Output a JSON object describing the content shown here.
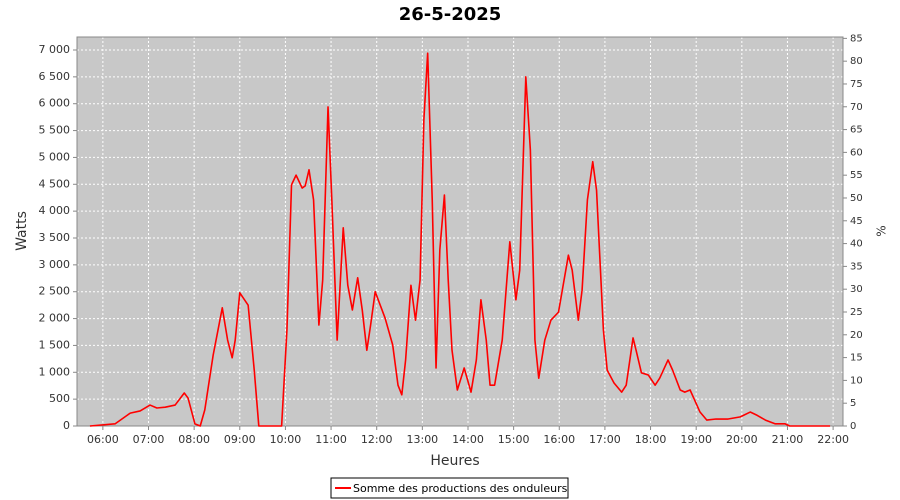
{
  "chart_data": {
    "type": "line",
    "title": "26-5-2025",
    "xlabel": "Heures",
    "ylabel": "Watts",
    "y2label": "%",
    "x": [
      "05:43",
      "06:16",
      "06:29",
      "06:36",
      "06:49",
      "07:02",
      "07:11",
      "07:22",
      "07:35",
      "07:47",
      "07:52",
      "08:01",
      "08:08",
      "08:14",
      "08:25",
      "08:37",
      "08:44",
      "08:50",
      "08:54",
      "09:00",
      "09:11",
      "09:19",
      "09:25",
      "09:55",
      "10:02",
      "10:08",
      "10:14",
      "10:22",
      "10:26",
      "10:31",
      "10:37",
      "10:44",
      "10:49",
      "10:56",
      "11:01",
      "11:08",
      "11:16",
      "11:22",
      "11:28",
      "11:35",
      "11:41",
      "11:47",
      "11:52",
      "11:58",
      "12:11",
      "12:21",
      "12:28",
      "12:33",
      "12:38",
      "12:45",
      "12:51",
      "12:57",
      "13:02",
      "13:07",
      "13:13",
      "13:18",
      "13:23",
      "13:29",
      "13:34",
      "13:39",
      "13:46",
      "13:55",
      "14:04",
      "14:11",
      "14:17",
      "14:24",
      "14:29",
      "14:35",
      "14:45",
      "14:55",
      "15:03",
      "15:08",
      "15:16",
      "15:22",
      "15:28",
      "15:33",
      "15:41",
      "15:49",
      "15:59",
      "16:04",
      "16:12",
      "16:17",
      "16:25",
      "16:30",
      "16:37",
      "16:44",
      "16:49",
      "16:58",
      "17:03",
      "17:12",
      "17:22",
      "17:28",
      "17:37",
      "17:41",
      "17:48",
      "17:57",
      "18:06",
      "18:12",
      "18:23",
      "18:29",
      "18:39",
      "18:45",
      "18:52",
      "18:58",
      "19:05",
      "19:14",
      "19:26",
      "19:42",
      "19:58",
      "20:11",
      "20:20",
      "20:31",
      "20:44",
      "20:57",
      "21:03",
      "21:56"
    ],
    "series": [
      {
        "name": "Somme des productions des onduleurs",
        "color": "#ff0000",
        "values": [
          0,
          40,
          170,
          240,
          280,
          390,
          335,
          350,
          390,
          615,
          520,
          40,
          0,
          300,
          1320,
          2200,
          1600,
          1270,
          1600,
          2480,
          2250,
          1040,
          0,
          0,
          1790,
          4490,
          4670,
          4430,
          4470,
          4770,
          4210,
          1880,
          2720,
          5940,
          4210,
          1600,
          3690,
          2620,
          2160,
          2760,
          2160,
          1410,
          1880,
          2500,
          2010,
          1510,
          760,
          580,
          1230,
          2620,
          1970,
          2720,
          5700,
          6940,
          4210,
          1080,
          3280,
          4300,
          2720,
          1410,
          670,
          1080,
          630,
          1230,
          2350,
          1600,
          760,
          760,
          1600,
          3430,
          2350,
          2900,
          6500,
          5140,
          1600,
          890,
          1600,
          1970,
          2120,
          2530,
          3180,
          2900,
          1970,
          2530,
          4210,
          4920,
          4390,
          1790,
          1040,
          800,
          630,
          760,
          1640,
          1410,
          990,
          950,
          760,
          890,
          1230,
          1040,
          670,
          630,
          670,
          480,
          260,
          110,
          130,
          130,
          170,
          260,
          200,
          110,
          40,
          40,
          0,
          0
        ]
      }
    ],
    "xlim": [
      "05:26",
      "22:13"
    ],
    "xticks": [
      "06:00",
      "07:00",
      "08:00",
      "09:00",
      "10:00",
      "11:00",
      "12:00",
      "13:00",
      "14:00",
      "15:00",
      "16:00",
      "17:00",
      "18:00",
      "19:00",
      "20:00",
      "21:00",
      "22:00"
    ],
    "ylim": [
      0,
      7242
    ],
    "yticks": [
      0,
      500,
      {
        "value": 1000,
        "label": "1 000"
      },
      {
        "value": 1500,
        "label": "1 500"
      },
      {
        "value": 2000,
        "label": "2 000"
      },
      {
        "value": 2500,
        "label": "2 500"
      },
      {
        "value": 3000,
        "label": "3 000"
      },
      {
        "value": 3500,
        "label": "3 500"
      },
      {
        "value": 4000,
        "label": "4 000"
      },
      {
        "value": 4500,
        "label": "4 500"
      },
      {
        "value": 5000,
        "label": "5 000"
      },
      {
        "value": 5500,
        "label": "5 500"
      },
      {
        "value": 6000,
        "label": "6 000"
      },
      {
        "value": 6500,
        "label": "6 500"
      },
      {
        "value": 7000,
        "label": "7 000"
      }
    ],
    "y2lim": [
      0,
      85.3
    ],
    "y2ticks": [
      0,
      5,
      10,
      15,
      20,
      25,
      30,
      35,
      40,
      45,
      50,
      55,
      60,
      65,
      70,
      75,
      80,
      85
    ],
    "grid": true
  }
}
